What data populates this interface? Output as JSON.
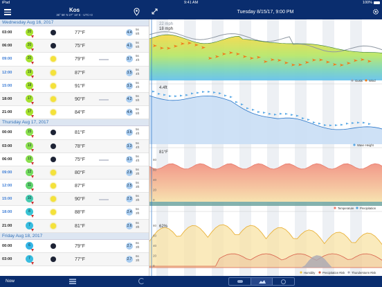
{
  "status": {
    "device": "iPad",
    "time": "9:41 AM",
    "battery": "100%"
  },
  "location": {
    "name": "Kos",
    "coords": "36° 56' N 27° 18' E · UTC+3"
  },
  "header": {
    "datetime": "Tuesday 8/15/17, 9:00 PM"
  },
  "days": [
    {
      "name": "Wednesday",
      "date": "Aug 16, 2017",
      "rows": [
        {
          "time": "03:00",
          "wind": "20",
          "wind_color": "#a6e22e",
          "weather": "moon",
          "temp": "77°F",
          "wave": "4.4",
          "period": "5s",
          "height": "5ft",
          "blue": false
        },
        {
          "time": "06:00",
          "wind": "20",
          "wind_color": "#a6e22e",
          "weather": "moon",
          "temp": "75°F",
          "wave": "4.1",
          "period": "5s",
          "height": "5ft",
          "blue": false
        },
        {
          "time": "09:00",
          "wind": "20",
          "wind_color": "#a6e22e",
          "weather": "sun",
          "temp": "79°F",
          "wave": "3.7",
          "period": "5s",
          "height": "4ft",
          "blue": true
        },
        {
          "time": "12:00",
          "wind": "19",
          "wind_color": "#a6e22e",
          "weather": "sun",
          "temp": "87°F",
          "wave": "3.5",
          "period": "5s",
          "height": "4ft",
          "blue": true
        },
        {
          "time": "15:00",
          "wind": "18",
          "wind_color": "#a6e22e",
          "weather": "sun",
          "temp": "91°F",
          "wave": "3.3",
          "period": "5s",
          "height": "4ft",
          "blue": true
        },
        {
          "time": "18:00",
          "wind": "17",
          "wind_color": "#a6e22e",
          "weather": "sun",
          "temp": "90°F",
          "wave": "4.2",
          "period": "5s",
          "height": "5ft",
          "blue": false
        },
        {
          "time": "21:00",
          "wind": "17",
          "wind_color": "#a6e22e",
          "weather": "sun",
          "temp": "84°F",
          "wave": "4.4",
          "period": "5s",
          "height": "5ft",
          "blue": false
        }
      ]
    },
    {
      "name": "Thursday",
      "date": "Aug 17, 2017",
      "rows": [
        {
          "time": "00:00",
          "wind": "15",
          "wind_color": "#8be04e",
          "weather": "moon",
          "temp": "81°F",
          "wave": "3.6",
          "period": "5s",
          "height": "4ft",
          "blue": false
        },
        {
          "time": "03:00",
          "wind": "13",
          "wind_color": "#8be04e",
          "weather": "moon",
          "temp": "78°F",
          "wave": "3.3",
          "period": "5s",
          "height": "4ft",
          "blue": false
        },
        {
          "time": "06:00",
          "wind": "13",
          "wind_color": "#8be04e",
          "weather": "moon",
          "temp": "75°F",
          "wave": "3.1",
          "period": "5s",
          "height": "4ft",
          "blue": false
        },
        {
          "time": "09:00",
          "wind": "12",
          "wind_color": "#73dc5d",
          "weather": "sun",
          "temp": "80°F",
          "wave": "2.8",
          "period": "5s",
          "height": "3ft",
          "blue": true
        },
        {
          "time": "12:00",
          "wind": "11",
          "wind_color": "#5fd46e",
          "weather": "sun",
          "temp": "87°F",
          "wave": "2.5",
          "period": "5s",
          "height": "3ft",
          "blue": true
        },
        {
          "time": "15:00",
          "wind": "10",
          "wind_color": "#47cbb0",
          "weather": "sun",
          "temp": "90°F",
          "wave": "2.3",
          "period": "5s",
          "height": "3ft",
          "blue": true
        },
        {
          "time": "18:00",
          "wind": "8",
          "wind_color": "#3ac4d4",
          "weather": "sun",
          "temp": "88°F",
          "wave": "2.4",
          "period": "5s",
          "height": "3ft",
          "blue": true
        },
        {
          "time": "21:00",
          "wind": "7",
          "wind_color": "#38bde0",
          "weather": "sun",
          "temp": "81°F",
          "wave": "2.6",
          "period": "6s",
          "height": "3ft",
          "blue": false
        }
      ]
    },
    {
      "name": "Friday",
      "date": "Aug 18, 2017",
      "rows": [
        {
          "time": "00:00",
          "wind": "6",
          "wind_color": "#35b6e6",
          "weather": "moon",
          "temp": "79°F",
          "wave": "2.7",
          "period": "6s",
          "height": "3ft",
          "blue": false
        },
        {
          "time": "03:00",
          "wind": "7",
          "wind_color": "#38bde0",
          "weather": "moon",
          "temp": "77°F",
          "wave": "2.7",
          "period": "6s",
          "height": "3ft",
          "blue": false
        }
      ]
    }
  ],
  "charts": {
    "wind": {
      "gust_label": "22 mph",
      "wind_label": "18 mph",
      "legend": [
        "Gusts",
        "Wind"
      ],
      "colors": [
        "#9aa3ad",
        "#f07a1a"
      ]
    },
    "wave": {
      "label": "4.4ft",
      "legend": "Wave Height",
      "color": "#5aa9e6"
    },
    "temp": {
      "label": "81°F",
      "legend": [
        "Temperature",
        "Precipitation"
      ],
      "y_ticks": [
        "80",
        "60",
        "40",
        "20",
        "0"
      ]
    },
    "humidity": {
      "label": "62%",
      "legend": [
        "Humidity",
        "Precipitation Risk",
        "Thunderstorm Risk"
      ],
      "y_ticks": [
        "80",
        "60",
        "40",
        "20",
        "0"
      ]
    }
  },
  "bottom": {
    "now_label": "Now"
  }
}
